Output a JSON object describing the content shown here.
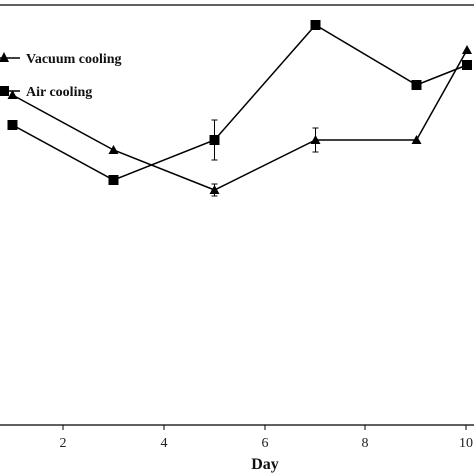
{
  "chart_data": {
    "type": "line",
    "xlabel": "Day",
    "ylabel": "",
    "title": "",
    "xlim": [
      1,
      10
    ],
    "ylim": [
      0,
      100
    ],
    "x_ticks": [
      "2",
      "4",
      "6",
      "8",
      "10"
    ],
    "legend": "top-left",
    "grid": false,
    "series": [
      {
        "name": "Vacuum cooling",
        "marker": "triangle",
        "x": [
          1,
          3,
          5,
          7,
          9,
          10
        ],
        "values": [
          66,
          55,
          47,
          57,
          57,
          75
        ],
        "errors": [
          0,
          0,
          1.2,
          2.4,
          0,
          0
        ]
      },
      {
        "name": "Air cooling",
        "marker": "square",
        "x": [
          1,
          3,
          5,
          7,
          9,
          10
        ],
        "values": [
          60,
          49,
          57,
          80,
          68,
          72
        ],
        "errors": [
          0,
          0,
          4.0,
          0,
          0,
          0
        ]
      }
    ],
    "colors": {
      "line": "#000000",
      "marker": "#000000"
    }
  }
}
